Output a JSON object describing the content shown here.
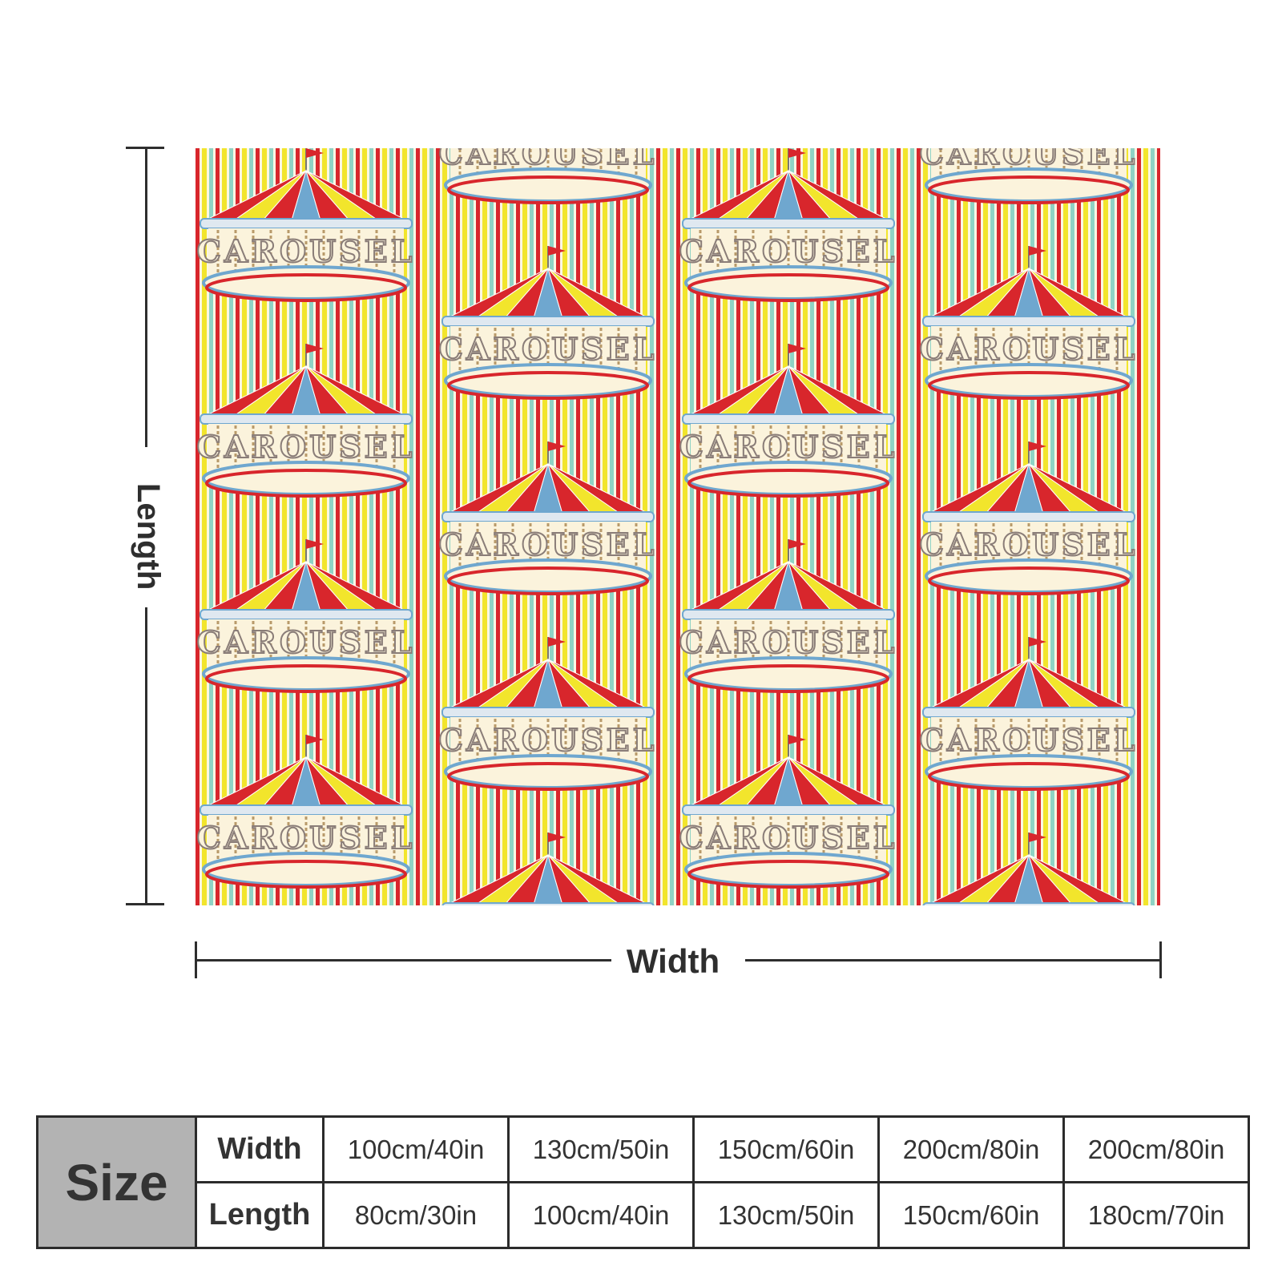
{
  "dimensions": {
    "length_label": "Length",
    "width_label": "Width"
  },
  "artwork": {
    "motif_text": "CAROUSEL",
    "stripe_colors": [
      "#d8262c",
      "#f2e52c",
      "#8fd3c5",
      "#fbf7e4"
    ],
    "canopy_colors": [
      "#d8262c",
      "#f2e52c",
      "#6fa7cf"
    ],
    "base_color": "#fbf3dc"
  },
  "size_table": {
    "title": "Size",
    "width_label": "Width",
    "length_label": "Length",
    "widths": [
      "100cm/40in",
      "130cm/50in",
      "150cm/60in",
      "200cm/80in",
      "200cm/80in"
    ],
    "lengths": [
      "80cm/30in",
      "100cm/40in",
      "130cm/50in",
      "150cm/60in",
      "180cm/70in"
    ]
  }
}
